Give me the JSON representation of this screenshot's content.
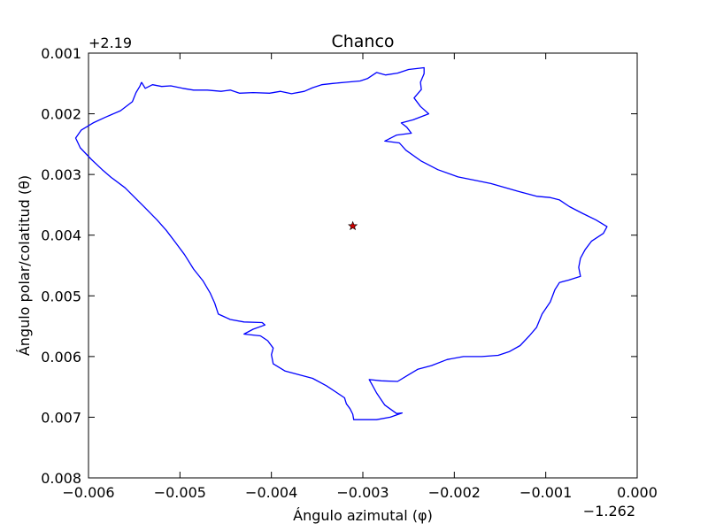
{
  "chart_data": {
    "type": "line",
    "title": "Chanco",
    "xlabel": "Ángulo azimutal (φ)",
    "ylabel": "Ángulo polar/colatitud (θ)",
    "x_offset_label": "−1.262",
    "y_offset_label": "+2.19",
    "xlim": [
      -0.006,
      0.0
    ],
    "ylim": [
      0.008,
      0.001
    ],
    "y_inverted": true,
    "x_ticks": [
      -0.006,
      -0.005,
      -0.004,
      -0.003,
      -0.002,
      -0.001,
      0.0
    ],
    "x_tick_labels": [
      "−0.006",
      "−0.005",
      "−0.004",
      "−0.003",
      "−0.002",
      "−0.001",
      "0.000"
    ],
    "y_ticks": [
      0.001,
      0.002,
      0.003,
      0.004,
      0.005,
      0.006,
      0.007,
      0.008
    ],
    "y_tick_labels": [
      "0.001",
      "0.002",
      "0.003",
      "0.004",
      "0.005",
      "0.006",
      "0.007",
      "0.008"
    ],
    "grid": false,
    "colors": {
      "boundary": "#0000ff",
      "marker": "#cc0000",
      "axes": "#000000"
    },
    "series": [
      {
        "marker": "none",
        "color": "#0000ff",
        "points": [
          [
            -0.00542,
            0.00148
          ],
          [
            -0.00538,
            0.00158
          ],
          [
            -0.0053,
            0.00152
          ],
          [
            -0.0052,
            0.00155
          ],
          [
            -0.0051,
            0.00154
          ],
          [
            -0.00497,
            0.00158
          ],
          [
            -0.00485,
            0.00161
          ],
          [
            -0.0047,
            0.00161
          ],
          [
            -0.00455,
            0.00163
          ],
          [
            -0.00445,
            0.00161
          ],
          [
            -0.00435,
            0.00166
          ],
          [
            -0.0042,
            0.00165
          ],
          [
            -0.00402,
            0.00166
          ],
          [
            -0.0039,
            0.00163
          ],
          [
            -0.00378,
            0.00167
          ],
          [
            -0.00364,
            0.00163
          ],
          [
            -0.00355,
            0.00157
          ],
          [
            -0.00345,
            0.00152
          ],
          [
            -0.00333,
            0.0015
          ],
          [
            -0.00318,
            0.00148
          ],
          [
            -0.00303,
            0.00146
          ],
          [
            -0.00295,
            0.00142
          ],
          [
            -0.00285,
            0.00132
          ],
          [
            -0.00275,
            0.00136
          ],
          [
            -0.00262,
            0.00133
          ],
          [
            -0.0025,
            0.00127
          ],
          [
            -0.00233,
            0.00124
          ],
          [
            -0.00233,
            0.00134
          ],
          [
            -0.00237,
            0.00148
          ],
          [
            -0.00236,
            0.0016
          ],
          [
            -0.00244,
            0.00174
          ],
          [
            -0.00237,
            0.00188
          ],
          [
            -0.00228,
            0.002
          ],
          [
            -0.00245,
            0.0021
          ],
          [
            -0.00258,
            0.00215
          ],
          [
            -0.00252,
            0.00222
          ],
          [
            -0.00247,
            0.00232
          ],
          [
            -0.00263,
            0.00235
          ],
          [
            -0.00276,
            0.00245
          ],
          [
            -0.0026,
            0.00248
          ],
          [
            -0.00253,
            0.0026
          ],
          [
            -0.00236,
            0.00278
          ],
          [
            -0.00218,
            0.00292
          ],
          [
            -0.00196,
            0.00304
          ],
          [
            -0.00176,
            0.0031
          ],
          [
            -0.0016,
            0.00315
          ],
          [
            -0.0013,
            0.00328
          ],
          [
            -0.0011,
            0.00336
          ],
          [
            -0.00095,
            0.00338
          ],
          [
            -0.00085,
            0.00342
          ],
          [
            -0.00074,
            0.00353
          ],
          [
            -0.0006,
            0.00364
          ],
          [
            -0.00045,
            0.00375
          ],
          [
            -0.00033,
            0.00386
          ],
          [
            -0.00037,
            0.00397
          ],
          [
            -0.0005,
            0.0041
          ],
          [
            -0.00057,
            0.00424
          ],
          [
            -0.00062,
            0.00438
          ],
          [
            -0.00064,
            0.00453
          ],
          [
            -0.00062,
            0.00468
          ],
          [
            -0.00075,
            0.00474
          ],
          [
            -0.00085,
            0.00478
          ],
          [
            -0.0009,
            0.0049
          ],
          [
            -0.00095,
            0.0051
          ],
          [
            -0.00104,
            0.0053
          ],
          [
            -0.0011,
            0.00552
          ],
          [
            -0.00118,
            0.00566
          ],
          [
            -0.00128,
            0.00582
          ],
          [
            -0.0014,
            0.00592
          ],
          [
            -0.00152,
            0.00598
          ],
          [
            -0.0017,
            0.006
          ],
          [
            -0.0019,
            0.006
          ],
          [
            -0.00208,
            0.00605
          ],
          [
            -0.00225,
            0.00615
          ],
          [
            -0.0024,
            0.00621
          ],
          [
            -0.0025,
            0.0063
          ],
          [
            -0.00262,
            0.00641
          ],
          [
            -0.0028,
            0.0064
          ],
          [
            -0.00293,
            0.00638
          ],
          [
            -0.0029,
            0.00646
          ],
          [
            -0.00285,
            0.0066
          ],
          [
            -0.00276,
            0.0068
          ],
          [
            -0.00263,
            0.00694
          ],
          [
            -0.00257,
            0.00693
          ],
          [
            -0.0027,
            0.007
          ],
          [
            -0.00285,
            0.00704
          ],
          [
            -0.0031,
            0.00704
          ],
          [
            -0.00311,
            0.00695
          ],
          [
            -0.00314,
            0.00686
          ],
          [
            -0.00318,
            0.00678
          ],
          [
            -0.0032,
            0.00668
          ],
          [
            -0.00328,
            0.0066
          ],
          [
            -0.0034,
            0.00648
          ],
          [
            -0.00355,
            0.00636
          ],
          [
            -0.0037,
            0.0063
          ],
          [
            -0.00385,
            0.00624
          ],
          [
            -0.00398,
            0.00612
          ],
          [
            -0.004,
            0.00597
          ],
          [
            -0.00398,
            0.00586
          ],
          [
            -0.00404,
            0.00574
          ],
          [
            -0.00412,
            0.00566
          ],
          [
            -0.0043,
            0.00563
          ],
          [
            -0.0042,
            0.00555
          ],
          [
            -0.00407,
            0.00548
          ],
          [
            -0.0041,
            0.00544
          ],
          [
            -0.0043,
            0.00543
          ],
          [
            -0.00445,
            0.00539
          ],
          [
            -0.00458,
            0.0053
          ],
          [
            -0.00462,
            0.00512
          ],
          [
            -0.00467,
            0.00495
          ],
          [
            -0.00475,
            0.00475
          ],
          [
            -0.00485,
            0.00456
          ],
          [
            -0.00495,
            0.00432
          ],
          [
            -0.00505,
            0.00412
          ],
          [
            -0.00515,
            0.00392
          ],
          [
            -0.00525,
            0.00375
          ],
          [
            -0.00538,
            0.00355
          ],
          [
            -0.00548,
            0.0034
          ],
          [
            -0.0056,
            0.00322
          ],
          [
            -0.00575,
            0.00305
          ],
          [
            -0.00585,
            0.00292
          ],
          [
            -0.00597,
            0.00275
          ],
          [
            -0.00609,
            0.00256
          ],
          [
            -0.00614,
            0.0024
          ],
          [
            -0.00608,
            0.00227
          ],
          [
            -0.00595,
            0.00215
          ],
          [
            -0.00582,
            0.00206
          ],
          [
            -0.00565,
            0.00195
          ],
          [
            -0.00552,
            0.0018
          ],
          [
            -0.00548,
            0.00165
          ],
          [
            -0.00544,
            0.00155
          ],
          [
            -0.00542,
            0.00148
          ]
        ]
      },
      {
        "marker": "star",
        "color": "#cc0000",
        "points": [
          [
            -0.00311,
            0.00385
          ]
        ]
      }
    ]
  }
}
